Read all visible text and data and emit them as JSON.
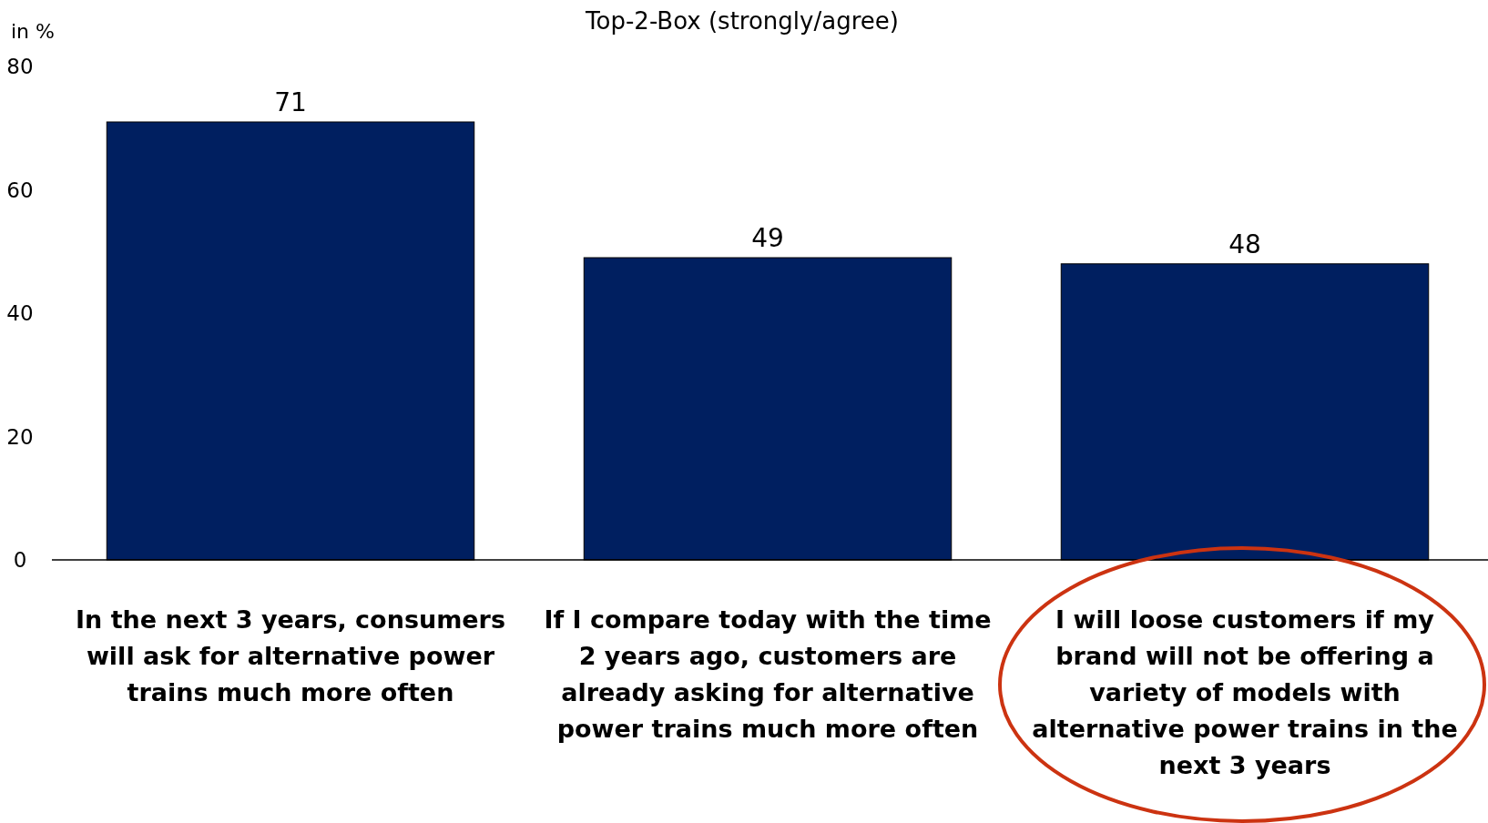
{
  "chart_data": {
    "type": "bar",
    "title": "Top-2-Box (strongly/agree)",
    "ylabel": "in %",
    "categories": [
      "In the next 3 years, consumers will ask for alternative power trains much more often",
      "If I compare today with the time 2 years ago, customers are already asking for alternative power trains much more often",
      "I will loose customers if my brand will not be offering a variety of models with alternative power trains in the next 3 years"
    ],
    "values": [
      71,
      49,
      48
    ],
    "color": "#001f60",
    "ylim": [
      0,
      80
    ],
    "yticks": [
      0,
      20,
      40,
      60,
      80
    ],
    "grid": false,
    "data_labels": true
  }
}
